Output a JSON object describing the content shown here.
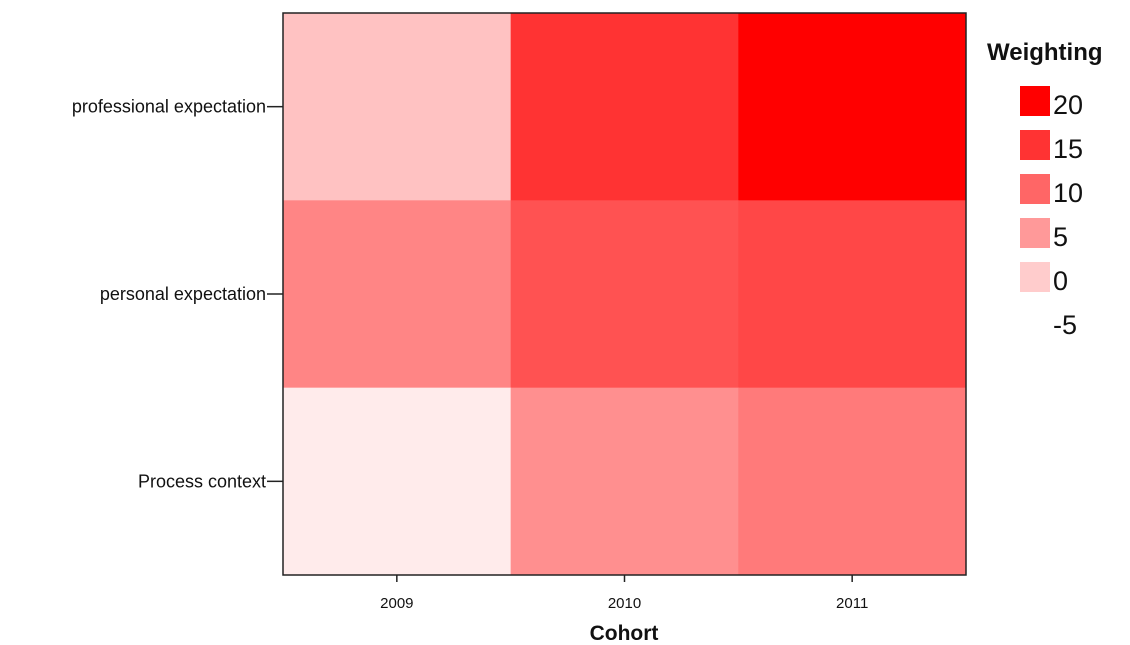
{
  "chart_data": {
    "type": "heatmap",
    "title": "",
    "xlabel": "Cohort",
    "ylabel": "",
    "x_categories": [
      "2009",
      "2010",
      "2011"
    ],
    "y_categories": [
      "professional expectation",
      "personal expectation",
      "Process context"
    ],
    "values": [
      [
        1,
        15,
        20
      ],
      [
        7,
        12,
        13
      ],
      [
        -3,
        6,
        8
      ]
    ],
    "color_scale": {
      "low_color": "#ffffff",
      "high_color": "#ff0000",
      "min": -5,
      "max": 20
    },
    "legend": {
      "title": "Weighting",
      "placement": "right",
      "labels": [
        "20",
        "15",
        "10",
        "5",
        "0",
        "-5"
      ],
      "values": [
        20,
        15,
        10,
        5,
        0,
        -5
      ]
    },
    "grid": false
  }
}
